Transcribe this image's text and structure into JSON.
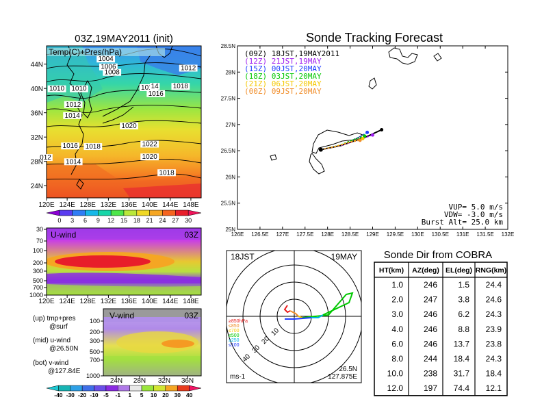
{
  "surface_map": {
    "title": "03Z,19MAY2011 (init)",
    "overlay_label": "Temp(C)+Pres(hPa)",
    "lon_ticks": [
      "120E",
      "124E",
      "128E",
      "132E",
      "136E",
      "140E",
      "144E",
      "148E"
    ],
    "lat_ticks": [
      "44N",
      "40N",
      "36N",
      "32N",
      "28N",
      "24N"
    ],
    "isobar_labels": [
      {
        "text": "1004",
        "lon": 131.5,
        "lat": 44.5
      },
      {
        "text": "1006",
        "lon": 132.0,
        "lat": 43.2
      },
      {
        "text": "1008",
        "lon": 132.7,
        "lat": 42.3
      },
      {
        "text": "1012",
        "lon": 147.5,
        "lat": 43.0
      },
      {
        "text": "1010",
        "lon": 122.0,
        "lat": 39.6
      },
      {
        "text": "1010",
        "lon": 126.3,
        "lat": 39.6
      },
      {
        "text": "1016",
        "lon": 139.8,
        "lat": 39.8
      },
      {
        "text": "14",
        "lon": 141.0,
        "lat": 40.0
      },
      {
        "text": "1018",
        "lon": 146.0,
        "lat": 40.0
      },
      {
        "text": "1016",
        "lon": 141.2,
        "lat": 38.8
      },
      {
        "text": "1012",
        "lon": 125.2,
        "lat": 37.0
      },
      {
        "text": "1014",
        "lon": 125.0,
        "lat": 35.2
      },
      {
        "text": "1020",
        "lon": 136.0,
        "lat": 33.5
      },
      {
        "text": "1016",
        "lon": 124.6,
        "lat": 30.2
      },
      {
        "text": "1018",
        "lon": 129.0,
        "lat": 30.1
      },
      {
        "text": "1022",
        "lon": 140.0,
        "lat": 30.5
      },
      {
        "text": "1020",
        "lon": 140.0,
        "lat": 28.4
      },
      {
        "text": "012",
        "lon": 119.8,
        "lat": 28.3
      },
      {
        "text": "1014",
        "lon": 125.2,
        "lat": 27.6
      },
      {
        "text": "1018",
        "lon": 143.3,
        "lat": 25.8
      }
    ],
    "colorbar_labels": [
      "0",
      "3",
      "6",
      "9",
      "12",
      "15",
      "18",
      "21",
      "24",
      "27",
      "30"
    ],
    "colorbar_colors": [
      "#8a00d4",
      "#5a3cf0",
      "#2f7df5",
      "#16b8e8",
      "#17d6a8",
      "#4de64a",
      "#b9e83a",
      "#f0d824",
      "#f5a623",
      "#f5641e",
      "#e81e2a",
      "#f0145a"
    ]
  },
  "u_wind": {
    "label": "U-wind",
    "time": "03Z",
    "y_ticks": [
      "30",
      "70",
      "100",
      "200",
      "300",
      "500",
      "700",
      "1000"
    ],
    "lon_ticks": [
      "120E",
      "124E",
      "128E",
      "132E",
      "136E",
      "140E",
      "144E",
      "148E"
    ]
  },
  "v_wind": {
    "label": "V-wind",
    "time": "03Z",
    "y_ticks": [
      "100",
      "200",
      "300",
      "500",
      "700",
      "1000"
    ],
    "lat_ticks": [
      "24N",
      "28N",
      "32N",
      "36N"
    ],
    "colorbar_labels": [
      "-40",
      "-30",
      "-20",
      "-10",
      "-5",
      "-1",
      "1",
      "5",
      "10",
      "20",
      "30",
      "40"
    ],
    "colorbar_colors": [
      "#1ec8d2",
      "#18b4b4",
      "#2ea0e6",
      "#3f6fe8",
      "#6a4fe8",
      "#8a2be2",
      "#b07ae8",
      "#e8e8e8",
      "#9ae63c",
      "#d2e632",
      "#f5a623",
      "#e83c1e",
      "#f01464"
    ]
  },
  "legend_notes": {
    "up_line1": "(up) tmp+pres",
    "up_line2": "@surf",
    "mid_line1": "(mid) u-wind",
    "mid_line2": "@26.50N",
    "bot_line1": "(bot) v-wind",
    "bot_line2": "@127.84E"
  },
  "chart_data": {
    "type": "line",
    "title": "Sonde Tracking Forecast",
    "xlim": [
      126.0,
      132.0
    ],
    "ylim": [
      25.0,
      28.5
    ],
    "x_ticks": [
      126,
      126.5,
      127,
      127.5,
      128,
      128.5,
      129,
      129.5,
      130,
      130.5,
      131,
      131.5,
      132
    ],
    "x_tick_labels": [
      "126E",
      "126.5E",
      "127E",
      "127.5E",
      "128E",
      "128.5E",
      "129E",
      "129.5E",
      "130E",
      "130.5E",
      "131E",
      "131.5E",
      "132E"
    ],
    "y_ticks": [
      25,
      25.5,
      26,
      26.5,
      27,
      27.5,
      28,
      28.5
    ],
    "y_tick_labels": [
      "25N",
      "25.5N",
      "26N",
      "26.5N",
      "27N",
      "27.5N",
      "28N",
      "28.5N"
    ],
    "series": [
      {
        "name": "(09Z) 18JST,19MAY2011",
        "color": "#000000",
        "x": [
          127.85,
          128.3,
          128.9,
          129.2
        ],
        "y": [
          26.52,
          26.6,
          26.78,
          26.9
        ]
      },
      {
        "name": "(12Z) 21JST,19MAY",
        "color": "#a020f0",
        "x": [
          127.85,
          128.3,
          128.75,
          129.0
        ],
        "y": [
          26.52,
          26.6,
          26.72,
          26.8
        ]
      },
      {
        "name": "(15Z) 00JST,20MAY",
        "color": "#1e3cff",
        "x": [
          127.85,
          128.3,
          128.7,
          128.88
        ],
        "y": [
          26.52,
          26.61,
          26.76,
          26.85
        ]
      },
      {
        "name": "(18Z) 03JST,20MAY",
        "color": "#00c800",
        "x": [
          127.85,
          128.25,
          128.6,
          128.82
        ],
        "y": [
          26.52,
          26.6,
          26.72,
          26.78
        ]
      },
      {
        "name": "(21Z) 06JST,20MAY",
        "color": "#f5c800",
        "x": [
          127.85,
          128.2,
          128.55,
          128.78
        ],
        "y": [
          26.52,
          26.59,
          26.68,
          26.73
        ]
      },
      {
        "name": "(00Z) 09JST,20MAY",
        "color": "#f08c28",
        "x": [
          127.85,
          128.2,
          128.5,
          128.72
        ],
        "y": [
          26.52,
          26.58,
          26.66,
          26.7
        ]
      }
    ],
    "info": {
      "vup": "VUP= 5.0 m/s",
      "vdw": "VDW= -3.0 m/s",
      "burst": "Burst Alt= 25.0 km"
    }
  },
  "polar": {
    "time_label": "18JST",
    "date_label": "19MAY",
    "ring_labels": [
      "10",
      "20",
      "30",
      "40"
    ],
    "pressure_legend": [
      {
        "text": "≥850hPa",
        "color": "#e81e1e"
      },
      {
        "text": "≤850",
        "color": "#f08c28"
      },
      {
        "text": "≤700",
        "color": "#f5c800"
      },
      {
        "text": "≤500",
        "color": "#00c800"
      },
      {
        "text": "≤250",
        "color": "#00b4e6"
      },
      {
        "text": "≤100",
        "color": "#1e3cff"
      }
    ],
    "unit": "ms-1",
    "lat": "26.5N",
    "lon": "127.875E"
  },
  "sonde_table": {
    "title": "Sonde Dir from COBRA",
    "headers": [
      "HT(km)",
      "AZ(deg)",
      "EL(deg)",
      "RNG(km)"
    ],
    "rows": [
      [
        "1.0",
        "246",
        "1.5",
        "24.4"
      ],
      [
        "2.0",
        "247",
        "3.8",
        "24.6"
      ],
      [
        "3.0",
        "246",
        "6.2",
        "24.3"
      ],
      [
        "4.0",
        "246",
        "8.8",
        "23.9"
      ],
      [
        "6.0",
        "246",
        "13.7",
        "23.8"
      ],
      [
        "8.0",
        "244",
        "18.4",
        "24.3"
      ],
      [
        "10.0",
        "238",
        "31.7",
        "18.4"
      ],
      [
        "12.0",
        "197",
        "74.4",
        "12.1"
      ]
    ]
  }
}
